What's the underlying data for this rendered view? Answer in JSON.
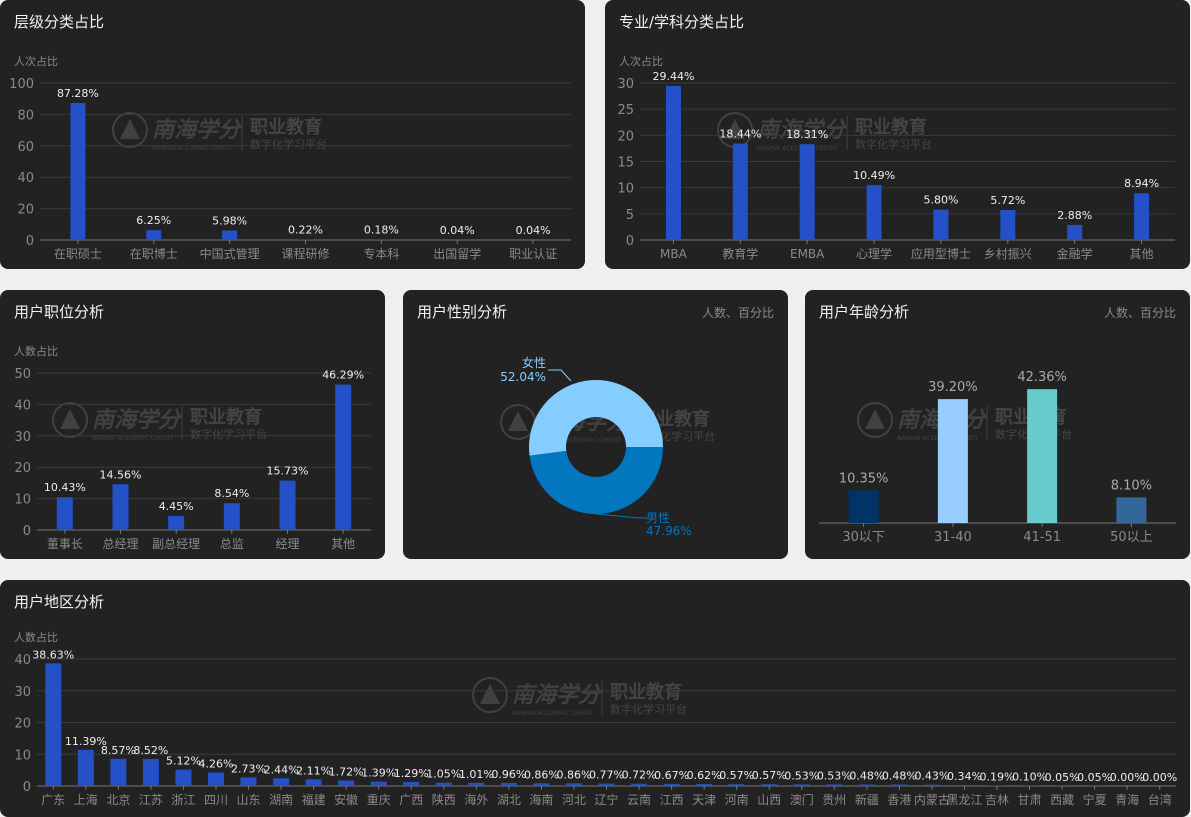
{
  "watermark": {
    "brand": "南海学分",
    "brand_en": "NANHAI ACEDEMIC CREDIT",
    "line1": "职业教育",
    "line2": "数字化学习平台"
  },
  "colors": {
    "panel_bg": "#222222",
    "page_bg": "#efefef",
    "bar": "#2450c8",
    "female": "#86cdff",
    "male": "#0277c0"
  },
  "chart_data": [
    {
      "id": "level",
      "type": "bar",
      "title": "层级分类占比",
      "ylabel": "人次占比",
      "categories": [
        "在职硕士",
        "在职博士",
        "中国式管理",
        "课程研修",
        "专本科",
        "出国留学",
        "职业认证"
      ],
      "values": [
        87.28,
        6.25,
        5.98,
        0.22,
        0.18,
        0.04,
        0.04
      ],
      "labels": [
        "87.28%",
        "6.25%",
        "5.98%",
        "0.22%",
        "0.18%",
        "0.04%",
        "0.04%"
      ],
      "ylim": [
        0,
        100
      ],
      "yticks": [
        "0",
        "20",
        "40",
        "60",
        "80",
        "100"
      ],
      "grid": true
    },
    {
      "id": "major",
      "type": "bar",
      "title": "专业/学科分类占比",
      "ylabel": "人次占比",
      "categories": [
        "MBA",
        "教育学",
        "EMBA",
        "心理学",
        "应用型博士",
        "乡村振兴",
        "金融学",
        "其他"
      ],
      "values": [
        29.44,
        18.44,
        18.31,
        10.49,
        5.8,
        5.72,
        2.88,
        8.94
      ],
      "labels": [
        "29.44%",
        "18.44%",
        "18.31%",
        "10.49%",
        "5.80%",
        "5.72%",
        "2.88%",
        "8.94%"
      ],
      "ylim": [
        0,
        30
      ],
      "yticks": [
        "0",
        "5",
        "10",
        "15",
        "20",
        "25",
        "30"
      ],
      "grid": true
    },
    {
      "id": "position",
      "type": "bar",
      "title": "用户职位分析",
      "ylabel": "人数占比",
      "categories": [
        "董事长",
        "总经理",
        "副总经理",
        "总监",
        "经理",
        "其他"
      ],
      "values": [
        10.43,
        14.56,
        4.45,
        8.54,
        15.73,
        46.29
      ],
      "labels": [
        "10.43%",
        "14.56%",
        "4.45%",
        "8.54%",
        "15.73%",
        "46.29%"
      ],
      "ylim": [
        0,
        50
      ],
      "yticks": [
        "0",
        "10",
        "20",
        "30",
        "40",
        "50"
      ],
      "grid": true
    },
    {
      "id": "gender",
      "type": "pie",
      "title": "用户性别分析",
      "unit": "人数、百分比",
      "slices": [
        {
          "name": "男性",
          "value": 47.96,
          "label": "47.96%",
          "color": "#0277c0"
        },
        {
          "name": "女性",
          "value": 52.04,
          "label": "52.04%",
          "color": "#86cdff"
        }
      ]
    },
    {
      "id": "age",
      "type": "bar",
      "title": "用户年龄分析",
      "unit": "人数、百分比",
      "categories": [
        "30以下",
        "31-40",
        "41-51",
        "50以上"
      ],
      "values": [
        10.35,
        39.2,
        42.36,
        8.1
      ],
      "labels": [
        "10.35%",
        "39.20%",
        "42.36%",
        "8.10%"
      ],
      "bar_colors": [
        "#003366",
        "#99ccff",
        "#66cccc",
        "#336699"
      ],
      "ylim": [
        0,
        50
      ],
      "grid": false
    },
    {
      "id": "region",
      "type": "bar",
      "title": "用户地区分析",
      "ylabel": "人数占比",
      "categories": [
        "广东",
        "上海",
        "北京",
        "江苏",
        "浙江",
        "四川",
        "山东",
        "湖南",
        "福建",
        "安徽",
        "重庆",
        "广西",
        "陕西",
        "海外",
        "湖北",
        "海南",
        "河北",
        "辽宁",
        "云南",
        "江西",
        "天津",
        "河南",
        "山西",
        "澳门",
        "贵州",
        "新疆",
        "香港",
        "内蒙古",
        "黑龙江",
        "吉林",
        "甘肃",
        "西藏",
        "宁夏",
        "青海",
        "台湾"
      ],
      "values": [
        38.63,
        11.39,
        8.57,
        8.52,
        5.12,
        4.26,
        2.73,
        2.44,
        2.11,
        1.72,
        1.39,
        1.29,
        1.05,
        1.01,
        0.96,
        0.86,
        0.86,
        0.77,
        0.72,
        0.67,
        0.62,
        0.57,
        0.57,
        0.53,
        0.53,
        0.48,
        0.48,
        0.43,
        0.34,
        0.19,
        0.1,
        0.05,
        0.05,
        0.0,
        0.0
      ],
      "labels": [
        "38.63%",
        "11.39%",
        "8.57%",
        "8.52%",
        "5.12%",
        "4.26%",
        "2.73%",
        "2.44%",
        "2.11%",
        "1.72%",
        "1.39%",
        "1.29%",
        "1.05%",
        "1.01%",
        "0.96%",
        "0.86%",
        "0.86%",
        "0.77%",
        "0.72%",
        "0.67%",
        "0.62%",
        "0.57%",
        "0.57%",
        "0.53%",
        "0.53%",
        "0.48%",
        "0.48%",
        "0.43%",
        "0.34%",
        "0.19%",
        "0.10%",
        "0.05%",
        "0.05%",
        "0.00%",
        "0.00%"
      ],
      "ylim": [
        0,
        40
      ],
      "yticks": [
        "0",
        "10",
        "20",
        "30",
        "40"
      ],
      "grid": true
    }
  ]
}
